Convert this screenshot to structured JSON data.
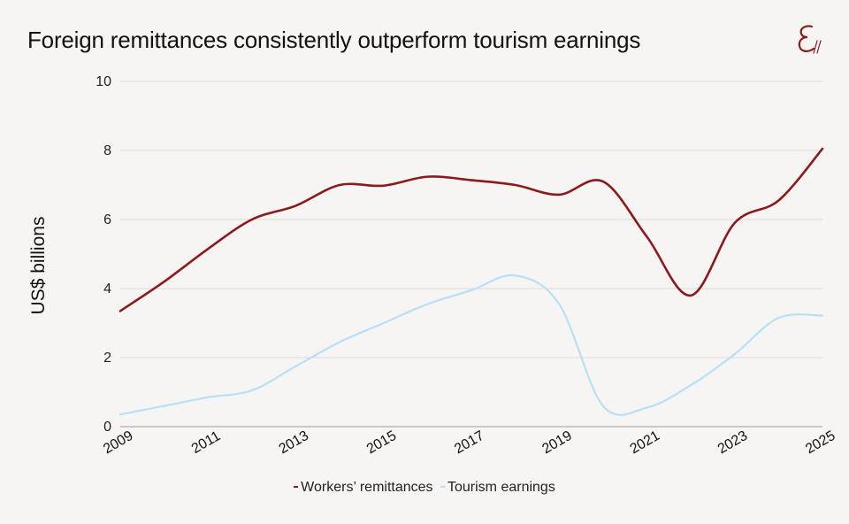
{
  "title": "Foreign remittances consistently outperform tourism earnings",
  "logo": {
    "icon": "epsilon-monogram-icon",
    "color": "#8b1a1a"
  },
  "chart_data": {
    "type": "line",
    "title": "Foreign remittances consistently outperform tourism earnings",
    "xlabel": "",
    "ylabel": "US$ billions",
    "x": [
      2009,
      2010,
      2011,
      2012,
      2013,
      2014,
      2015,
      2016,
      2017,
      2018,
      2019,
      2020,
      2021,
      2022,
      2023,
      2024,
      2025
    ],
    "xlim": [
      2009,
      2025
    ],
    "ylim": [
      0,
      10
    ],
    "x_ticks": [
      "2009",
      "2011",
      "2013",
      "2015",
      "2017",
      "2019",
      "2021",
      "2023",
      "2025"
    ],
    "y_ticks": [
      "0",
      "2",
      "4",
      "6",
      "8",
      "10"
    ],
    "grid": "horizontal",
    "legend_position": "bottom",
    "series": [
      {
        "name": "Workers’ remittances",
        "color": "#8b1a1a",
        "values": [
          3.35,
          4.2,
          5.15,
          6.0,
          6.4,
          7.0,
          6.98,
          7.24,
          7.14,
          7.0,
          6.72,
          7.1,
          5.5,
          3.8,
          5.9,
          6.55,
          8.05
        ]
      },
      {
        "name": "Tourism earnings",
        "color": "#b7e0f5",
        "values": [
          0.35,
          0.6,
          0.85,
          1.05,
          1.75,
          2.45,
          3.0,
          3.55,
          3.95,
          4.38,
          3.55,
          0.6,
          0.55,
          1.2,
          2.1,
          3.15,
          3.22
        ]
      }
    ]
  }
}
